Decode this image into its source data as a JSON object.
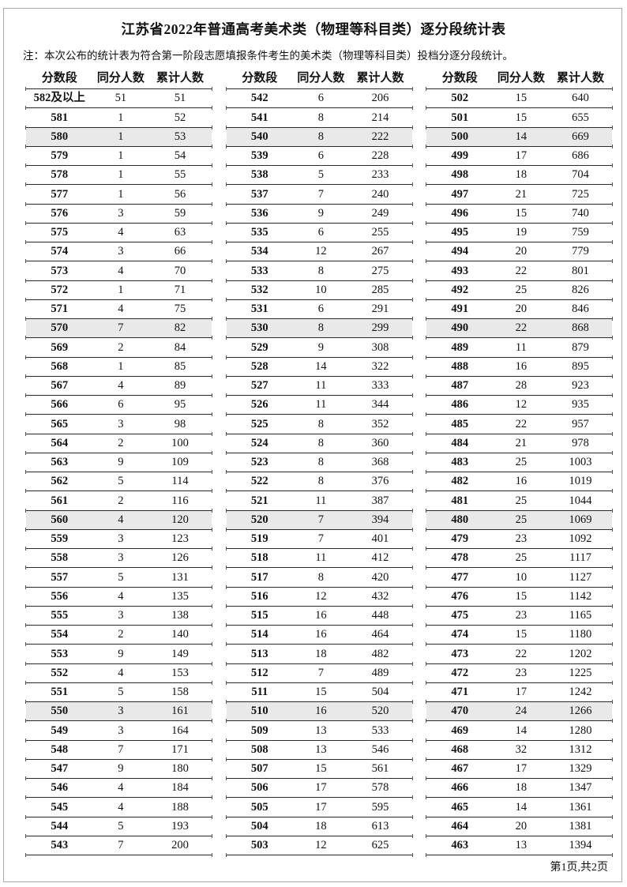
{
  "page": {
    "title": "江苏省2022年普通高考美术类（物理等科目类）逐分段统计表",
    "note": "注：本次公布的统计表为符合第一阶段志愿填报条件考生的美术类（物理等科目类）投档分逐分段统计。",
    "footer": "第1页,共2页"
  },
  "columns": [
    "分数段",
    "同分人数",
    "累计人数"
  ],
  "colors": {
    "row_shade": "#e9e9e9",
    "rule": "#2b2b2b",
    "page_border": "#aaaaaa",
    "text": "#111111"
  },
  "tables": [
    {
      "rows": [
        [
          "582及以上",
          51,
          51
        ],
        [
          "581",
          1,
          52
        ],
        [
          "580",
          1,
          53
        ],
        [
          "579",
          1,
          54
        ],
        [
          "578",
          1,
          55
        ],
        [
          "577",
          1,
          56
        ],
        [
          "576",
          3,
          59
        ],
        [
          "575",
          4,
          63
        ],
        [
          "574",
          3,
          66
        ],
        [
          "573",
          4,
          70
        ],
        [
          "572",
          1,
          71
        ],
        [
          "571",
          4,
          75
        ],
        [
          "570",
          7,
          82
        ],
        [
          "569",
          2,
          84
        ],
        [
          "568",
          1,
          85
        ],
        [
          "567",
          4,
          89
        ],
        [
          "566",
          6,
          95
        ],
        [
          "565",
          3,
          98
        ],
        [
          "564",
          2,
          100
        ],
        [
          "563",
          9,
          109
        ],
        [
          "562",
          5,
          114
        ],
        [
          "561",
          2,
          116
        ],
        [
          "560",
          4,
          120
        ],
        [
          "559",
          3,
          123
        ],
        [
          "558",
          3,
          126
        ],
        [
          "557",
          5,
          131
        ],
        [
          "556",
          4,
          135
        ],
        [
          "555",
          3,
          138
        ],
        [
          "554",
          2,
          140
        ],
        [
          "553",
          9,
          149
        ],
        [
          "552",
          4,
          153
        ],
        [
          "551",
          5,
          158
        ],
        [
          "550",
          3,
          161
        ],
        [
          "549",
          3,
          164
        ],
        [
          "548",
          7,
          171
        ],
        [
          "547",
          9,
          180
        ],
        [
          "546",
          4,
          184
        ],
        [
          "545",
          4,
          188
        ],
        [
          "544",
          5,
          193
        ],
        [
          "543",
          7,
          200
        ]
      ]
    },
    {
      "rows": [
        [
          "542",
          6,
          206
        ],
        [
          "541",
          8,
          214
        ],
        [
          "540",
          8,
          222
        ],
        [
          "539",
          6,
          228
        ],
        [
          "538",
          5,
          233
        ],
        [
          "537",
          7,
          240
        ],
        [
          "536",
          9,
          249
        ],
        [
          "535",
          6,
          255
        ],
        [
          "534",
          12,
          267
        ],
        [
          "533",
          8,
          275
        ],
        [
          "532",
          10,
          285
        ],
        [
          "531",
          6,
          291
        ],
        [
          "530",
          8,
          299
        ],
        [
          "529",
          9,
          308
        ],
        [
          "528",
          14,
          322
        ],
        [
          "527",
          11,
          333
        ],
        [
          "526",
          11,
          344
        ],
        [
          "525",
          8,
          352
        ],
        [
          "524",
          8,
          360
        ],
        [
          "523",
          8,
          368
        ],
        [
          "522",
          8,
          376
        ],
        [
          "521",
          11,
          387
        ],
        [
          "520",
          7,
          394
        ],
        [
          "519",
          7,
          401
        ],
        [
          "518",
          11,
          412
        ],
        [
          "517",
          8,
          420
        ],
        [
          "516",
          12,
          432
        ],
        [
          "515",
          16,
          448
        ],
        [
          "514",
          16,
          464
        ],
        [
          "513",
          18,
          482
        ],
        [
          "512",
          7,
          489
        ],
        [
          "511",
          15,
          504
        ],
        [
          "510",
          16,
          520
        ],
        [
          "509",
          13,
          533
        ],
        [
          "508",
          13,
          546
        ],
        [
          "507",
          15,
          561
        ],
        [
          "506",
          17,
          578
        ],
        [
          "505",
          17,
          595
        ],
        [
          "504",
          18,
          613
        ],
        [
          "503",
          12,
          625
        ]
      ]
    },
    {
      "rows": [
        [
          "502",
          15,
          640
        ],
        [
          "501",
          15,
          655
        ],
        [
          "500",
          14,
          669
        ],
        [
          "499",
          17,
          686
        ],
        [
          "498",
          18,
          704
        ],
        [
          "497",
          21,
          725
        ],
        [
          "496",
          15,
          740
        ],
        [
          "495",
          19,
          759
        ],
        [
          "494",
          20,
          779
        ],
        [
          "493",
          22,
          801
        ],
        [
          "492",
          25,
          826
        ],
        [
          "491",
          20,
          846
        ],
        [
          "490",
          22,
          868
        ],
        [
          "489",
          11,
          879
        ],
        [
          "488",
          16,
          895
        ],
        [
          "487",
          28,
          923
        ],
        [
          "486",
          12,
          935
        ],
        [
          "485",
          22,
          957
        ],
        [
          "484",
          21,
          978
        ],
        [
          "483",
          25,
          1003
        ],
        [
          "482",
          16,
          1019
        ],
        [
          "481",
          25,
          1044
        ],
        [
          "480",
          25,
          1069
        ],
        [
          "479",
          23,
          1092
        ],
        [
          "478",
          25,
          1117
        ],
        [
          "477",
          10,
          1127
        ],
        [
          "476",
          15,
          1142
        ],
        [
          "475",
          23,
          1165
        ],
        [
          "474",
          15,
          1180
        ],
        [
          "473",
          22,
          1202
        ],
        [
          "472",
          23,
          1225
        ],
        [
          "471",
          17,
          1242
        ],
        [
          "470",
          24,
          1266
        ],
        [
          "469",
          14,
          1280
        ],
        [
          "468",
          32,
          1312
        ],
        [
          "467",
          17,
          1329
        ],
        [
          "466",
          18,
          1347
        ],
        [
          "465",
          14,
          1361
        ],
        [
          "464",
          20,
          1381
        ],
        [
          "463",
          13,
          1394
        ]
      ]
    }
  ]
}
